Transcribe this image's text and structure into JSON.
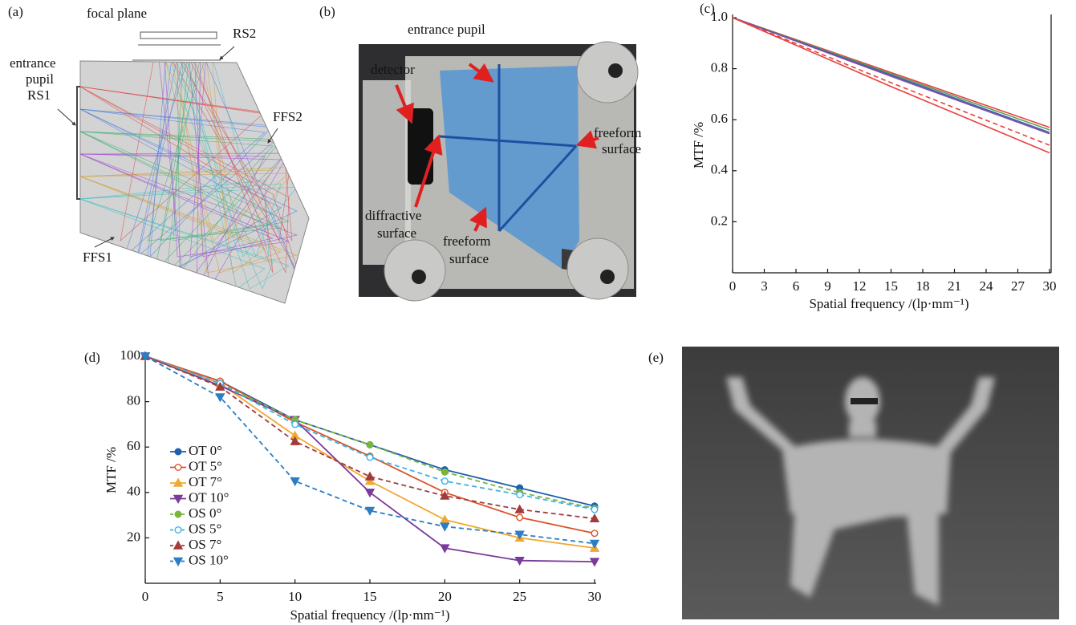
{
  "panel_a": {
    "label": "(a)",
    "focal_plane": "focal plane",
    "rs2": "RS2",
    "entrance_pupil": [
      "entrance",
      "pupil",
      "RS1"
    ],
    "ffs2": "FFS2",
    "ffs1": "FFS1"
  },
  "panel_b": {
    "label": "(b)",
    "entrance_pupil": "entrance pupil",
    "detector": "detector",
    "freeform_right": [
      "freeform",
      "surface"
    ],
    "diffractive": [
      "diffractive",
      "surface"
    ],
    "freeform_bottom": [
      "freeform",
      "surface"
    ]
  },
  "panel_e": {
    "label": "(e)"
  },
  "chart_data": [
    {
      "type": "line",
      "panel_label": "(c)",
      "ylabel": "MTF /%",
      "xlabel": "Spatial frequency /(lp·mm⁻¹)",
      "x": [
        0,
        15,
        30
      ],
      "xlim": [
        0,
        30
      ],
      "ylim": [
        0,
        1
      ],
      "xticks": [
        0,
        3,
        6,
        9,
        12,
        15,
        18,
        21,
        24,
        27,
        30
      ],
      "yticks": [
        0.2,
        0.4,
        0.6,
        0.8,
        {
          "value": 1,
          "label": "1.0"
        }
      ],
      "series": [
        {
          "color": "#e8413c",
          "dash": false,
          "values": [
            1,
            0.785,
            0.57
          ]
        },
        {
          "color": "#5aa05a",
          "dash": false,
          "values": [
            1,
            0.78,
            0.56
          ]
        },
        {
          "color": "#3a5bb0",
          "dash": false,
          "values": [
            1,
            0.775,
            0.55
          ]
        },
        {
          "color": "#8050a0",
          "dash": false,
          "values": [
            1,
            0.77,
            0.545
          ]
        },
        {
          "color": "#e8413c",
          "dash": true,
          "values": [
            1,
            0.745,
            0.5
          ]
        },
        {
          "color": "#e8413c",
          "dash": false,
          "values": [
            1,
            0.73,
            0.47
          ]
        }
      ]
    },
    {
      "type": "line",
      "panel_label": "(d)",
      "ylabel": "MTF /%",
      "xlabel": "Spatial frequency /(lp·mm⁻¹)",
      "x": [
        0,
        5,
        10,
        15,
        20,
        25,
        30
      ],
      "xlim": [
        0,
        30
      ],
      "ylim": [
        0,
        100
      ],
      "xticks": [
        0,
        5,
        10,
        15,
        20,
        25,
        30
      ],
      "yticks": [
        20,
        40,
        60,
        80,
        100
      ],
      "series": [
        {
          "name": "OT 0°",
          "color": "#1f5fad",
          "dash": false,
          "marker": "circle",
          "open": false,
          "values": [
            100,
            89,
            72,
            61,
            50,
            42,
            34
          ]
        },
        {
          "name": "OT 5°",
          "color": "#d9532a",
          "dash": false,
          "marker": "circle",
          "open": true,
          "values": [
            100,
            89,
            71,
            56,
            40,
            29,
            22
          ]
        },
        {
          "name": "OT 7°",
          "color": "#f0a830",
          "dash": false,
          "marker": "triangle-up",
          "open": false,
          "values": [
            100,
            88,
            65,
            45,
            28,
            20,
            15.5
          ]
        },
        {
          "name": "OT 10°",
          "color": "#7a3a9a",
          "dash": false,
          "marker": "triangle-down",
          "open": false,
          "values": [
            100,
            87,
            72,
            40,
            15.5,
            10,
            9.5
          ]
        },
        {
          "name": "OS 0°",
          "color": "#7ab43f",
          "dash": true,
          "marker": "circle",
          "open": false,
          "values": [
            100,
            88,
            72,
            61,
            49,
            40,
            33
          ]
        },
        {
          "name": "OS 5°",
          "color": "#3cb3e6",
          "dash": true,
          "marker": "circle",
          "open": true,
          "values": [
            100,
            88,
            70,
            55.5,
            45,
            39,
            32.5
          ]
        },
        {
          "name": "OS 7°",
          "color": "#a33b3b",
          "dash": true,
          "marker": "triangle-up",
          "open": false,
          "values": [
            100,
            86.5,
            62.5,
            47,
            38.5,
            32.5,
            28.5
          ]
        },
        {
          "name": "OS 10°",
          "color": "#2a7ec4",
          "dash": true,
          "marker": "triangle-down",
          "open": false,
          "values": [
            100,
            82,
            45,
            32,
            25,
            21.5,
            17.5
          ]
        }
      ]
    }
  ]
}
